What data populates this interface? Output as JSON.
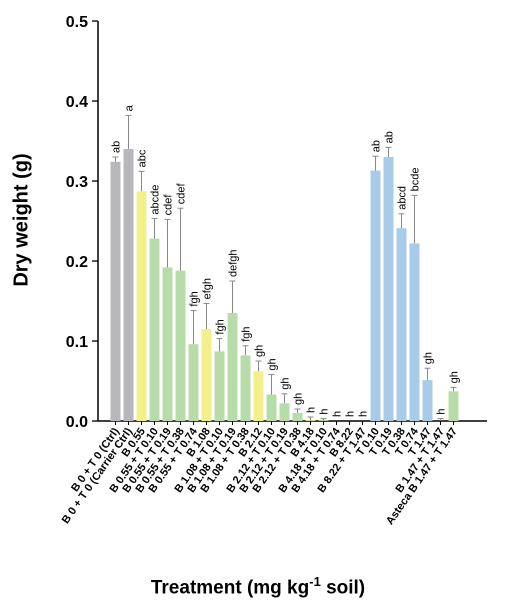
{
  "chart_data": {
    "type": "bar",
    "title": "",
    "xlabel_prefix": "Treatment (mg kg",
    "xlabel_exponent": "-1",
    "xlabel_suffix": " soil)",
    "ylabel": "Dry weight (g)",
    "ylim": [
      0,
      0.5
    ],
    "yticks": [
      "0.0",
      "0.1",
      "0.2",
      "0.3",
      "0.4",
      "0.5"
    ],
    "grid": false,
    "colors": {
      "control": "#b7b7bd",
      "boron": "#f3ef8b",
      "combination": "#b8dca9",
      "toxin": "#a9cbea"
    },
    "categories": [
      "B 0 + T 0 (Ctrl)",
      "B 0 + T 0 (Carrier Ctrl)",
      "B 0.55",
      "B 0.55 + T 0.10",
      "B 0.55 + T 0.19",
      "B 0.55 + T 0.38",
      "B 0.55 + T 0.74",
      "B 1.08",
      "B 1.08 + T 0.10",
      "B 1.08 + T 0.19",
      "B 1.08 + T 0.38",
      "B 2.12",
      "B 2.12 + T 0.10",
      "B 2.12 + T 0.19",
      "B 2.12 + T 0.38",
      "B 4.18",
      "B 4.18 + T 0.10",
      "B 4.18 + T 0.74",
      "B 8.22",
      "B 8.22 + T 1.47",
      "T 0.10",
      "T 0.19",
      "T 0.38",
      "T 0.74",
      "T 1.47",
      "B 1.47 + T 1.47",
      "Asteca B 1.47 + T 1.47"
    ],
    "values": [
      0.324,
      0.34,
      0.287,
      0.228,
      0.192,
      0.188,
      0.096,
      0.115,
      0.087,
      0.135,
      0.082,
      0.062,
      0.033,
      0.022,
      0.01,
      0.001,
      0.001,
      0.0,
      0.0,
      0.0,
      0.313,
      0.33,
      0.241,
      0.222,
      0.051,
      0.0,
      0.037
    ],
    "errors": [
      0.006,
      0.042,
      0.025,
      0.025,
      0.06,
      0.078,
      0.042,
      0.032,
      0.016,
      0.04,
      0.012,
      0.013,
      0.025,
      0.012,
      0.005,
      0.004,
      0.002,
      0.0,
      0.0,
      0.0,
      0.018,
      0.012,
      0.018,
      0.06,
      0.015,
      0.003,
      0.005
    ],
    "groups": [
      "control",
      "control",
      "boron",
      "combination",
      "combination",
      "combination",
      "combination",
      "boron",
      "combination",
      "combination",
      "combination",
      "boron",
      "combination",
      "combination",
      "combination",
      "boron",
      "combination",
      "combination",
      "boron",
      "combination",
      "toxin",
      "toxin",
      "toxin",
      "toxin",
      "toxin",
      "toxin",
      "combination"
    ],
    "significance_letters": [
      "ab",
      "a",
      "abc",
      "abcde",
      "cdef",
      "cdef",
      "fgh",
      "efgh",
      "fgh",
      "defgh",
      "fgh",
      "gh",
      "gh",
      "gh",
      "gh",
      "h",
      "h",
      "h",
      "h",
      "h",
      "ab",
      "ab",
      "abcd",
      "bcde",
      "gh",
      "h",
      "gh"
    ]
  }
}
